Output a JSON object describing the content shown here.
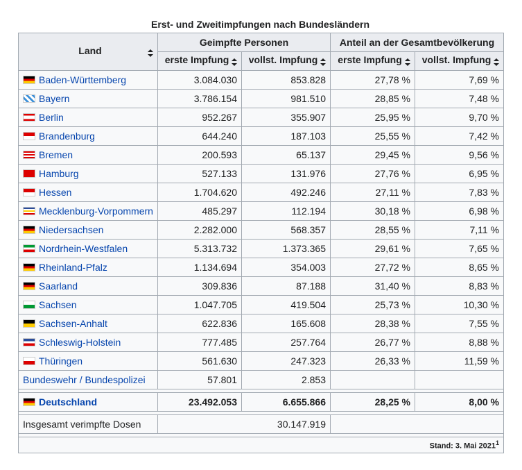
{
  "caption": "Erst- und Zweitimpfungen nach Bundesländern",
  "header": {
    "land": "Land",
    "group1": "Geimpfte Personen",
    "group2": "Anteil an der Gesamtbevölkerung",
    "cols": [
      "erste Impfung",
      "vollst. Impfung",
      "erste Impfung",
      "vollst. Impfung"
    ]
  },
  "rows": [
    [
      "Baden-Württemberg",
      "3.084.030",
      "853.828",
      "27,78 %",
      "7,69 %"
    ],
    [
      "Bayern",
      "3.786.154",
      "981.510",
      "28,85 %",
      "7,48 %"
    ],
    [
      "Berlin",
      "952.267",
      "355.907",
      "25,95 %",
      "9,70 %"
    ],
    [
      "Brandenburg",
      "644.240",
      "187.103",
      "25,55 %",
      "7,42 %"
    ],
    [
      "Bremen",
      "200.593",
      "65.137",
      "29,45 %",
      "9,56 %"
    ],
    [
      "Hamburg",
      "527.133",
      "131.976",
      "27,76 %",
      "6,95 %"
    ],
    [
      "Hessen",
      "1.704.620",
      "492.246",
      "27,11 %",
      "7,83 %"
    ],
    [
      "Mecklenburg-Vorpommern",
      "485.297",
      "112.194",
      "30,18 %",
      "6,98 %"
    ],
    [
      "Niedersachsen",
      "2.282.000",
      "568.357",
      "28,55 %",
      "7,11 %"
    ],
    [
      "Nordrhein-Westfalen",
      "5.313.732",
      "1.373.365",
      "29,61 %",
      "7,65 %"
    ],
    [
      "Rheinland-Pfalz",
      "1.134.694",
      "354.003",
      "27,72 %",
      "8,65 %"
    ],
    [
      "Saarland",
      "309.836",
      "87.188",
      "31,40 %",
      "8,83 %"
    ],
    [
      "Sachsen",
      "1.047.705",
      "419.504",
      "25,73 %",
      "10,30 %"
    ],
    [
      "Sachsen-Anhalt",
      "622.836",
      "165.608",
      "28,38 %",
      "7,55 %"
    ],
    [
      "Schleswig-Holstein",
      "777.485",
      "257.764",
      "26,77 %",
      "8,88 %"
    ],
    [
      "Thüringen",
      "561.630",
      "247.323",
      "26,33 %",
      "11,59 %"
    ]
  ],
  "bundeswehr": [
    "Bundeswehr / Bundespolizei",
    "57.801",
    "2.853"
  ],
  "total": [
    "Deutschland",
    "23.492.053",
    "6.655.866",
    "28,25 %",
    "8,00 %"
  ],
  "doses": {
    "label": "Insgesamt verimpfte Dosen",
    "value": "30.147.919"
  },
  "footnote": {
    "text": "Stand: 3. Mai 2021",
    "ref": "1"
  }
}
